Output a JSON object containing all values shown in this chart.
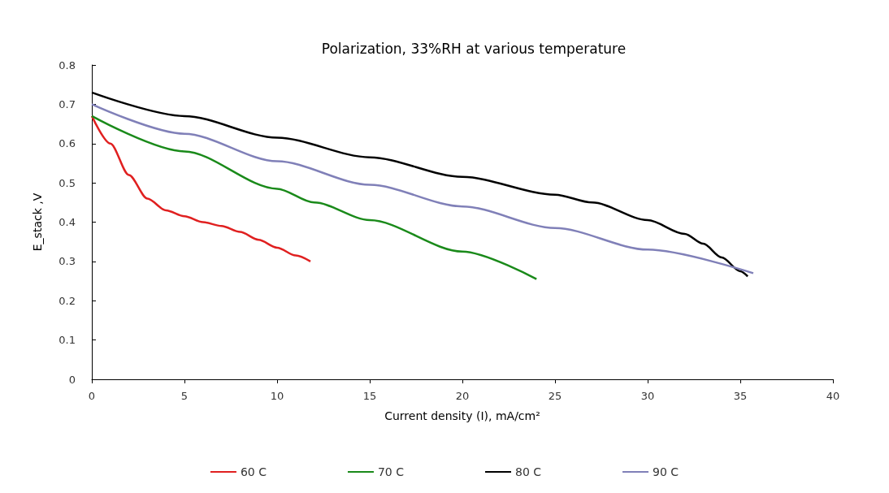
{
  "chart_data": {
    "type": "line",
    "title": "Polarization, 33%RH at various temperature",
    "xlabel": "Current density (I), mA/cm²",
    "ylabel": "E_stack ,V",
    "xlim": [
      0,
      40
    ],
    "xticks": [
      0,
      5,
      10,
      15,
      20,
      25,
      30,
      35,
      40
    ],
    "ylim": [
      0,
      0.8
    ],
    "yticks": [
      0,
      0.1,
      0.2,
      0.3,
      0.4,
      0.5,
      0.6,
      0.7,
      0.8
    ],
    "grid": false,
    "legend": "bottom",
    "marker": "none",
    "line_style": "solid",
    "series": [
      {
        "name": "60 C",
        "color": "#e02020",
        "x": [
          0,
          1,
          2,
          3,
          4,
          5,
          6,
          7,
          8,
          9,
          10,
          11,
          11.8
        ],
        "values": [
          0.67,
          0.6,
          0.52,
          0.46,
          0.43,
          0.415,
          0.4,
          0.39,
          0.375,
          0.355,
          0.335,
          0.315,
          0.3
        ]
      },
      {
        "name": "70 C",
        "color": "#1a8a1a",
        "x": [
          0,
          5,
          10,
          12,
          15,
          20,
          24
        ],
        "values": [
          0.67,
          0.58,
          0.485,
          0.45,
          0.405,
          0.325,
          0.255
        ]
      },
      {
        "name": "80 C",
        "color": "#000000",
        "x": [
          0,
          5,
          10,
          15,
          20,
          25,
          27,
          30,
          32,
          33,
          34,
          35,
          35.4
        ],
        "values": [
          0.73,
          0.67,
          0.615,
          0.565,
          0.515,
          0.47,
          0.45,
          0.405,
          0.37,
          0.345,
          0.31,
          0.275,
          0.262
        ]
      },
      {
        "name": "90 C",
        "color": "#8080b8",
        "x": [
          0,
          5,
          10,
          15,
          20,
          25,
          30,
          35.7
        ],
        "values": [
          0.7,
          0.625,
          0.555,
          0.495,
          0.44,
          0.385,
          0.33,
          0.27
        ]
      }
    ]
  }
}
